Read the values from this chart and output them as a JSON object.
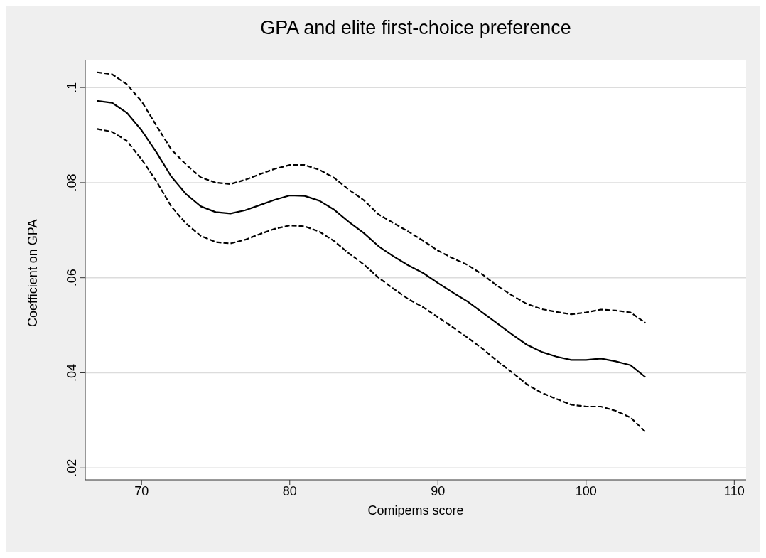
{
  "chart_data": {
    "type": "line",
    "title": "GPA and elite first-choice preference",
    "xlabel": "Comipems score",
    "ylabel": "Coefficient on GPA",
    "x": [
      67,
      68,
      69,
      70,
      71,
      72,
      73,
      74,
      75,
      76,
      77,
      78,
      79,
      80,
      81,
      82,
      83,
      84,
      85,
      86,
      87,
      88,
      89,
      90,
      91,
      92,
      93,
      94,
      95,
      96,
      97,
      98,
      99,
      100,
      101,
      102,
      103,
      104
    ],
    "series": [
      {
        "color": "#000000",
        "line_style": "dashed",
        "values": [
          0.1032,
          0.1028,
          0.1007,
          0.0971,
          0.092,
          0.087,
          0.0838,
          0.0811,
          0.08,
          0.0797,
          0.0806,
          0.0818,
          0.0829,
          0.0837,
          0.0837,
          0.0827,
          0.081,
          0.0785,
          0.0763,
          0.0733,
          0.0715,
          0.0697,
          0.0678,
          0.0657,
          0.0641,
          0.0627,
          0.0607,
          0.0583,
          0.0563,
          0.0545,
          0.0534,
          0.0528,
          0.0523,
          0.0527,
          0.0533,
          0.0531,
          0.0527,
          0.0505
        ]
      },
      {
        "color": "#000000",
        "line_style": "solid",
        "values": [
          0.0972,
          0.0968,
          0.0947,
          0.091,
          0.0864,
          0.0813,
          0.0776,
          0.075,
          0.0738,
          0.0735,
          0.0742,
          0.0753,
          0.0764,
          0.0773,
          0.0772,
          0.0762,
          0.0743,
          0.0717,
          0.0694,
          0.0666,
          0.0645,
          0.0626,
          0.061,
          0.0589,
          0.0569,
          0.055,
          0.0527,
          0.0504,
          0.0481,
          0.0459,
          0.0444,
          0.0434,
          0.0427,
          0.0427,
          0.043,
          0.0424,
          0.0416,
          0.0391
        ]
      },
      {
        "color": "#000000",
        "line_style": "dashed",
        "values": [
          0.0913,
          0.0907,
          0.0888,
          0.0849,
          0.0803,
          0.075,
          0.0714,
          0.0688,
          0.0675,
          0.0672,
          0.068,
          0.0692,
          0.0703,
          0.071,
          0.0708,
          0.0697,
          0.0677,
          0.0651,
          0.0628,
          0.06,
          0.0577,
          0.0555,
          0.0538,
          0.0517,
          0.0496,
          0.0474,
          0.0451,
          0.0425,
          0.0401,
          0.0376,
          0.0358,
          0.0345,
          0.0333,
          0.0329,
          0.0329,
          0.032,
          0.0306,
          0.0276
        ]
      }
    ],
    "xlim": [
      66.2,
      110.8
    ],
    "xticks": [
      70,
      80,
      90,
      100,
      110
    ],
    "ylim": [
      0.0175,
      0.1057
    ],
    "yticks": [
      {
        "value": 0.02,
        "label": ".02"
      },
      {
        "value": 0.04,
        "label": ".04"
      },
      {
        "value": 0.06,
        "label": ".06"
      },
      {
        "value": 0.08,
        "label": ".08"
      },
      {
        "value": 0.1,
        "label": ".1"
      }
    ],
    "grid": "y",
    "legend": false,
    "marker": "none"
  }
}
